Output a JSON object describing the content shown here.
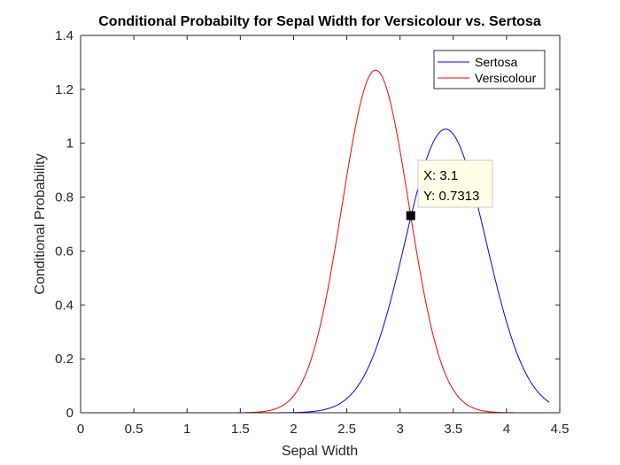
{
  "chart_data": {
    "type": "line",
    "title": "Conditional Probabilty for Sepal Width for Versicolour vs. Sertosa",
    "xlabel": "Sepal Width",
    "ylabel": "Conditional Probability",
    "xlim": [
      0,
      4.5
    ],
    "ylim": [
      0,
      1.4
    ],
    "xticks": [
      0,
      0.5,
      1,
      1.5,
      2,
      2.5,
      3,
      3.5,
      4,
      4.5
    ],
    "xtick_labels": [
      "0",
      "0.5",
      "1",
      "1.5",
      "2",
      "2.5",
      "3",
      "3.5",
      "4",
      "4.5"
    ],
    "yticks": [
      0,
      0.2,
      0.4,
      0.6,
      0.8,
      1,
      1.2,
      1.4
    ],
    "ytick_labels": [
      "0",
      "0.2",
      "0.4",
      "0.6",
      "0.8",
      "1",
      "1.2",
      "1.4"
    ],
    "x_range": [
      0,
      4.4
    ],
    "grid": false,
    "legend_position": "top-right",
    "series": [
      {
        "name": "Sertosa",
        "color": "#0000ff",
        "distribution": "normal",
        "mean": 3.428,
        "sd": 0.3791
      },
      {
        "name": "Versicolour",
        "color": "#ff0000",
        "distribution": "normal",
        "mean": 2.77,
        "sd": 0.3138
      }
    ],
    "datatip": {
      "x": 3.1,
      "y": 0.7313,
      "x_text": "X: 3.1",
      "y_text": "Y: 0.7313"
    }
  }
}
